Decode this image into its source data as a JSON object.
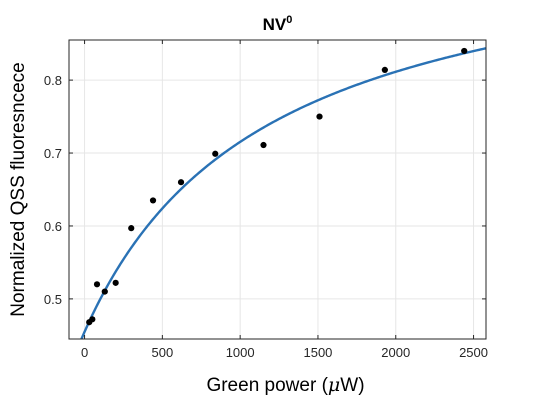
{
  "chart_data": {
    "type": "scatter",
    "title": "NV",
    "title_superscript": "0",
    "xlabel_prefix": "Green power (",
    "xlabel_unit_symbol": "μ",
    "xlabel_suffix": "W)",
    "ylabel": "Normalized QSS fluoresncece",
    "xlim": [
      -100,
      2580
    ],
    "ylim": [
      0.445,
      0.855
    ],
    "xticks": [
      {
        "value": 0,
        "label": "0"
      },
      {
        "value": 500,
        "label": "500"
      },
      {
        "value": 1000,
        "label": "1000"
      },
      {
        "value": 1500,
        "label": "1500"
      },
      {
        "value": 2000,
        "label": "2000"
      },
      {
        "value": 2500,
        "label": "2500"
      }
    ],
    "yticks": [
      {
        "value": 0.5,
        "label": "0.5"
      },
      {
        "value": 0.6,
        "label": "0.6"
      },
      {
        "value": 0.7,
        "label": "0.7"
      },
      {
        "value": 0.8,
        "label": "0.8"
      }
    ],
    "grid": true,
    "series": [
      {
        "kind": "points",
        "color": "#000000",
        "x": [
          30,
          50,
          80,
          130,
          200,
          300,
          440,
          620,
          840,
          1150,
          1510,
          1930,
          2440
        ],
        "y": [
          0.468,
          0.472,
          0.52,
          0.51,
          0.522,
          0.597,
          0.635,
          0.66,
          0.699,
          0.711,
          0.75,
          0.814,
          0.84
        ]
      },
      {
        "kind": "fit-curve",
        "color": "#2a72b5",
        "model": "saturation",
        "params": {
          "x0": -20,
          "y0": 0.445,
          "A": 0.575,
          "P": 1150
        }
      }
    ]
  }
}
